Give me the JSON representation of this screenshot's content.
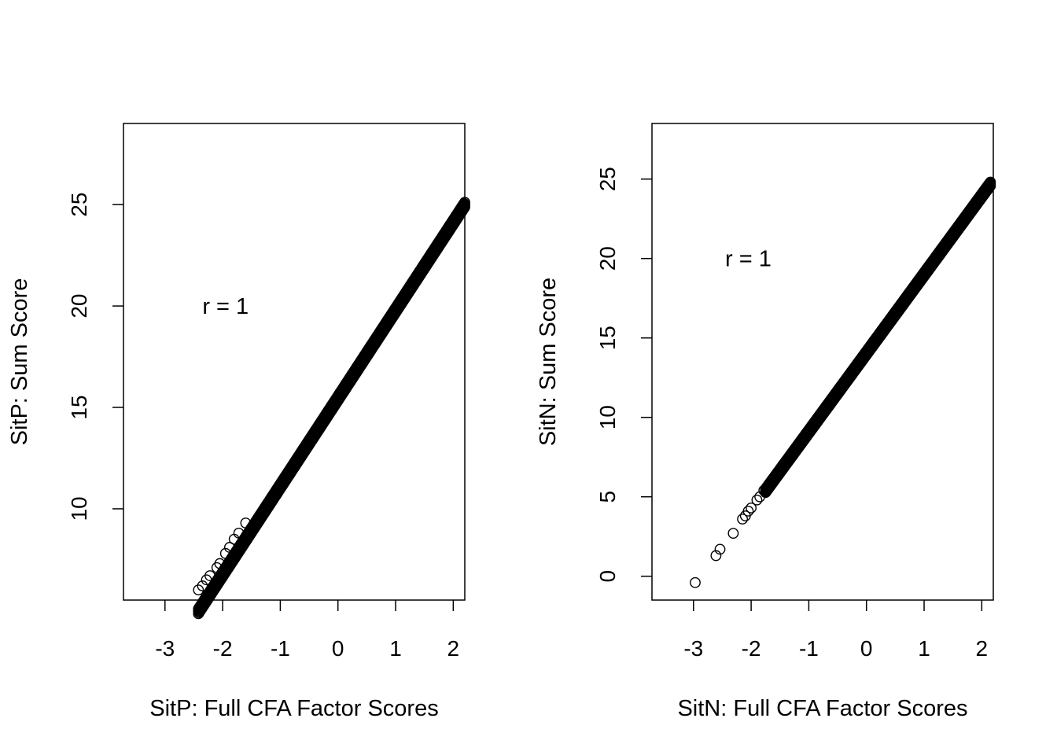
{
  "chart_data": [
    {
      "type": "scatter",
      "title": "",
      "xlabel": "SitP: Full CFA Factor Scores",
      "ylabel": "SitP: Sum Score",
      "annotation": "r = 1",
      "annotation_at": {
        "x": -1.95,
        "y": 20
      },
      "xlim": [
        -3.72,
        2.2
      ],
      "ylim": [
        5.5,
        29.0
      ],
      "xticks": [
        -3,
        -2,
        -1,
        0,
        1,
        2
      ],
      "xticklabels": [
        "-3",
        "-2",
        "-1",
        "0",
        "1",
        "2"
      ],
      "yticks": [
        10,
        15,
        20,
        25
      ],
      "yticklabels": [
        "10",
        "15",
        "20",
        "25"
      ],
      "grid": false,
      "relation": {
        "slope": 4.34,
        "intercept": 15.45
      },
      "x_range": [
        -2.42,
        2.2
      ],
      "outliers": [
        {
          "x": -2.42,
          "y": 6.0
        },
        {
          "x": -2.35,
          "y": 6.2
        },
        {
          "x": -2.28,
          "y": 6.5
        },
        {
          "x": -2.22,
          "y": 6.7
        },
        {
          "x": -2.1,
          "y": 7.1
        },
        {
          "x": -2.05,
          "y": 7.3
        },
        {
          "x": -1.95,
          "y": 7.8
        },
        {
          "x": -1.88,
          "y": 8.1
        },
        {
          "x": -1.8,
          "y": 8.5
        },
        {
          "x": -1.72,
          "y": 8.8
        },
        {
          "x": -1.6,
          "y": 9.3
        }
      ]
    },
    {
      "type": "scatter",
      "title": "",
      "xlabel": "SitN: Full CFA Factor Scores",
      "ylabel": "SitN: Sum Score",
      "annotation": "r = 1",
      "annotation_at": {
        "x": -2.05,
        "y": 20
      },
      "xlim": [
        -3.72,
        2.2
      ],
      "ylim": [
        -1.5,
        28.5
      ],
      "xticks": [
        -3,
        -2,
        -1,
        0,
        1,
        2
      ],
      "xticklabels": [
        "-3",
        "-2",
        "-1",
        "0",
        "1",
        "2"
      ],
      "yticks": [
        0,
        5,
        10,
        15,
        20,
        25
      ],
      "yticklabels": [
        "0",
        "5",
        "10",
        "15",
        "20",
        "25"
      ],
      "grid": false,
      "relation": {
        "slope": 4.95,
        "intercept": 14.05
      },
      "x_range": [
        -1.75,
        2.15
      ],
      "outliers": [
        {
          "x": -2.97,
          "y": -0.4
        },
        {
          "x": -2.61,
          "y": 1.3
        },
        {
          "x": -2.54,
          "y": 1.7
        },
        {
          "x": -2.31,
          "y": 2.7
        },
        {
          "x": -2.15,
          "y": 3.6
        },
        {
          "x": -2.1,
          "y": 3.8
        },
        {
          "x": -2.05,
          "y": 4.1
        },
        {
          "x": -2.0,
          "y": 4.3
        },
        {
          "x": -1.9,
          "y": 4.8
        },
        {
          "x": -1.85,
          "y": 5.0
        },
        {
          "x": -1.78,
          "y": 5.4
        }
      ]
    }
  ]
}
